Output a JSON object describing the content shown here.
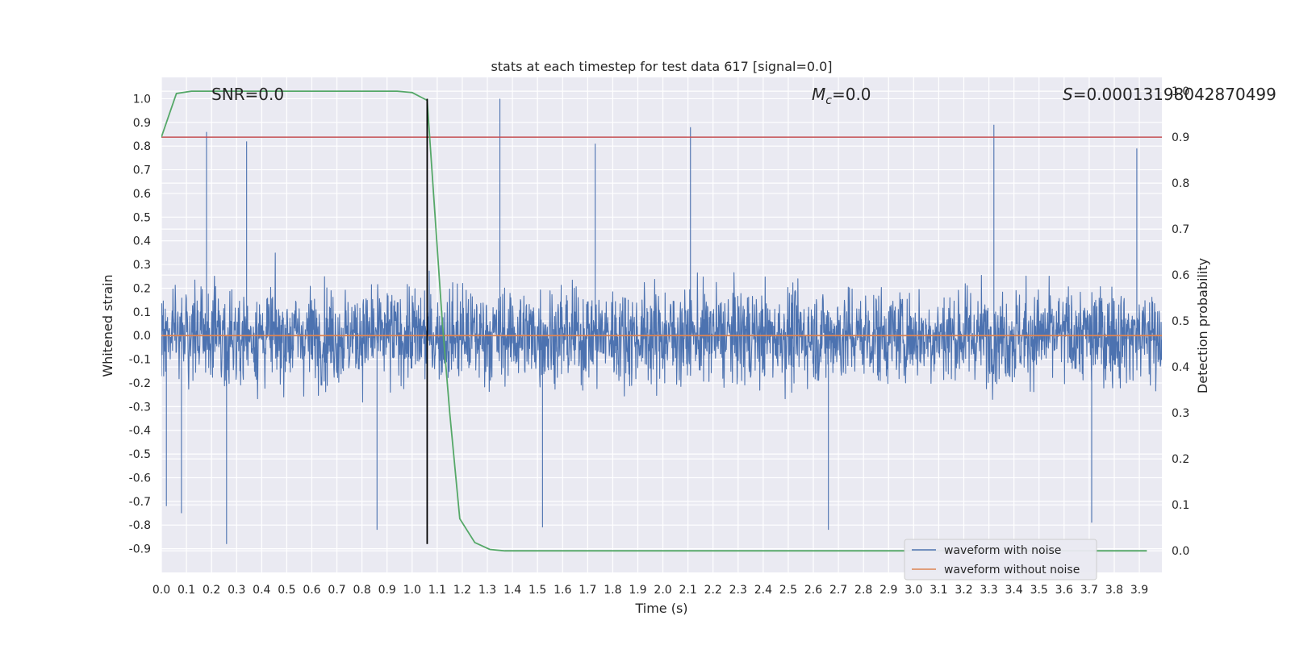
{
  "chart_data": {
    "type": "line",
    "title": "stats at each timestep for test data 617 [signal=0.0]",
    "xlabel": "Time (s)",
    "ylabel": "Whitened strain",
    "y2label": "Detection probability",
    "xlim": [
      0.0,
      3.99
    ],
    "ylim": [
      -1.0,
      1.09
    ],
    "y2lim": [
      -0.047,
      1.03
    ],
    "x_ticks": [
      "0.0",
      "0.1",
      "0.2",
      "0.3",
      "0.4",
      "0.5",
      "0.6",
      "0.7",
      "0.8",
      "0.9",
      "1.0",
      "1.1",
      "1.2",
      "1.3",
      "1.4",
      "1.5",
      "1.6",
      "1.7",
      "1.8",
      "1.9",
      "2.0",
      "2.1",
      "2.2",
      "2.3",
      "2.4",
      "2.5",
      "2.6",
      "2.7",
      "2.8",
      "2.9",
      "3.0",
      "3.1",
      "3.2",
      "3.3",
      "3.4",
      "3.5",
      "3.6",
      "3.7",
      "3.8",
      "3.9"
    ],
    "y_ticks": [
      "1.0",
      "0.9",
      "0.8",
      "0.7",
      "0.6",
      "0.5",
      "0.4",
      "0.3",
      "0.2",
      "0.1",
      "0.0",
      "-0.1",
      "-0.2",
      "-0.3",
      "-0.4",
      "-0.5",
      "-0.6",
      "-0.7",
      "-0.8",
      "-0.9"
    ],
    "y2_ticks": [
      "1.0",
      "0.9",
      "0.8",
      "0.7",
      "0.6",
      "0.5",
      "0.4",
      "0.3",
      "0.2",
      "0.1",
      "0.0"
    ],
    "grid": true,
    "legend_position": "bottom-right",
    "annotations": {
      "snr": "SNR=0.0",
      "mc_symbol": "M",
      "mc_sub": "c",
      "mc_value": "=0.0",
      "s_symbol": "S",
      "s_value": "=0.00013198042870499"
    },
    "series": [
      {
        "name": "waveform with noise",
        "color": "#4c72b0",
        "axis": "left",
        "noise_envelope": 0.85,
        "peaks": [
          {
            "x": 0.18,
            "y": 0.86
          },
          {
            "x": 0.34,
            "y": 0.82
          },
          {
            "x": 1.35,
            "y": 1.0
          },
          {
            "x": 1.73,
            "y": 0.81
          },
          {
            "x": 2.11,
            "y": 0.88
          },
          {
            "x": 3.32,
            "y": 0.89
          },
          {
            "x": 3.89,
            "y": 0.79
          },
          {
            "x": 0.26,
            "y": -0.88
          },
          {
            "x": 0.86,
            "y": -0.82
          },
          {
            "x": 1.52,
            "y": -0.81
          },
          {
            "x": 2.66,
            "y": -0.82
          },
          {
            "x": 3.71,
            "y": -0.79
          },
          {
            "x": 0.02,
            "y": -0.72
          },
          {
            "x": 0.08,
            "y": -0.75
          }
        ]
      },
      {
        "name": "waveform without noise",
        "color": "#dd8452",
        "axis": "left",
        "x": [
          0.0,
          3.99
        ],
        "y": [
          0.0,
          0.0
        ]
      },
      {
        "name": "detection probability",
        "color": "#55a868",
        "axis": "right",
        "x": [
          0.0,
          0.06,
          0.12,
          0.2,
          0.5,
          0.8,
          0.94,
          1.0,
          1.06,
          1.09,
          1.12,
          1.15,
          1.19,
          1.25,
          1.31,
          1.37,
          1.5,
          2.0,
          2.5,
          3.0,
          3.5,
          3.93
        ],
        "y": [
          0.9,
          0.995,
          1.0,
          1.0,
          1.0,
          1.0,
          1.0,
          0.997,
          0.98,
          0.74,
          0.5,
          0.3,
          0.07,
          0.018,
          0.003,
          0.0,
          0.0,
          0.0,
          0.0,
          0.0,
          0.0,
          0.0
        ]
      }
    ],
    "threshold": {
      "axis": "right",
      "y": 0.9,
      "color": "#c44e52"
    },
    "vline": {
      "x": 1.06,
      "ymin": -0.88,
      "ymax": 1.0,
      "color": "#000000"
    }
  }
}
